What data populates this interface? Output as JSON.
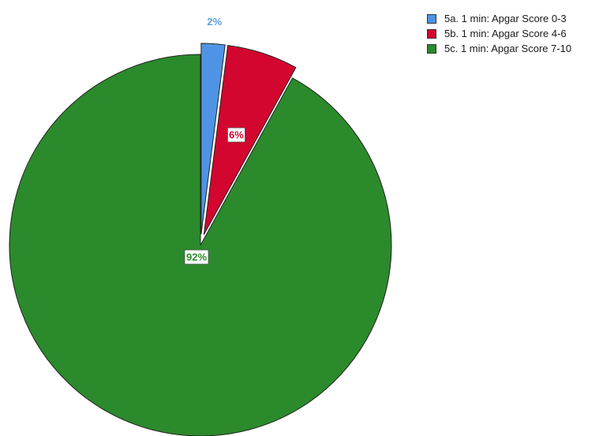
{
  "chart_data": {
    "type": "pie",
    "categories": [
      "5a. 1 min: Apgar Score 0-3",
      "5b. 1 min: Apgar Score 4-6",
      "5c. 1 min: Apgar Score 7-10"
    ],
    "values": [
      2,
      6,
      92
    ],
    "data_labels": [
      "2%",
      "6%",
      "92%"
    ],
    "colors": [
      "#4f94e4",
      "#d2062e",
      "#2b8a2b"
    ],
    "exploded": [
      true,
      true,
      false
    ],
    "start_angle": "12 o'clock, clockwise",
    "legend_position": "top-right"
  }
}
